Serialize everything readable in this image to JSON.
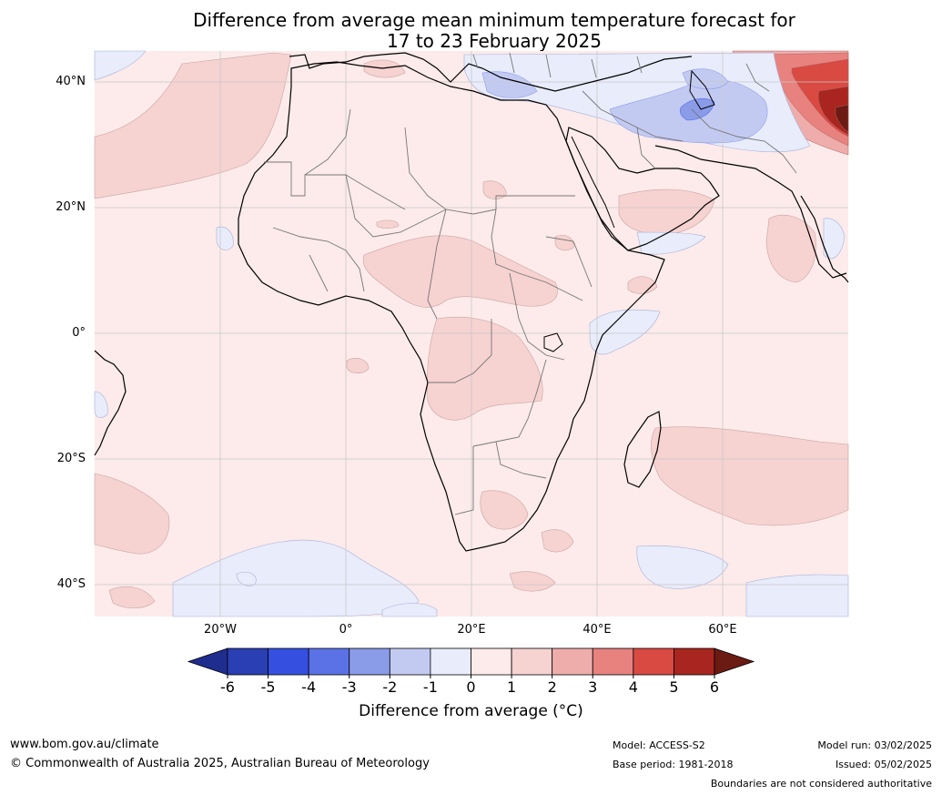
{
  "title_line1": "Difference from average mean minimum temperature forecast for",
  "title_line2": "17 to 23 February 2025",
  "lat_labels": [
    "40°N",
    "20°N",
    "0°",
    "20°S",
    "40°S"
  ],
  "lon_labels": [
    "20°W",
    "0°",
    "20°E",
    "40°E",
    "60°E"
  ],
  "colorbar": {
    "ticks": [
      "-6",
      "-5",
      "-4",
      "-3",
      "-2",
      "-1",
      "0",
      "1",
      "2",
      "3",
      "4",
      "5",
      "6"
    ],
    "colors": [
      "#1f2d8f",
      "#2a3fb3",
      "#3550e0",
      "#5a72e6",
      "#8a9be8",
      "#c3caf2",
      "#e8ecfb",
      "#fcebea",
      "#f6d2d1",
      "#eeadab",
      "#e7827f",
      "#d94a42",
      "#a8261f",
      "#6b1a14"
    ],
    "label": "Difference from average (°C)"
  },
  "footer": {
    "website": "www.bom.gov.au/climate",
    "copyright": "© Commonwealth of Australia 2025, Australian Bureau of Meteorology",
    "model": "Model: ACCESS-S2",
    "base_period": "Base period: 1981-2018",
    "model_run": "Model run: 03/02/2025",
    "issued": "Issued: 05/02/2025",
    "disclaimer": "Boundaries are not considered authoritative"
  }
}
